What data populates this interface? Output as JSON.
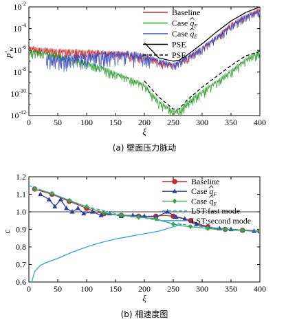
{
  "chart_data": [
    {
      "type": "line",
      "panel_caption": "(a) 壁面压力脉动",
      "xlabel": "ξ",
      "ylabel": "p'w",
      "xlim": [
        0,
        400
      ],
      "ylim_log10": [
        -12,
        -2
      ],
      "yscale": "log",
      "x_ticks": [
        "0",
        "50",
        "100",
        "150",
        "200",
        "250",
        "300",
        "350",
        "400"
      ],
      "y_ticks": [
        {
          "base": "10",
          "exp": "-2"
        },
        {
          "base": "10",
          "exp": "-4"
        },
        {
          "base": "10",
          "exp": "-6"
        },
        {
          "base": "10",
          "exp": "-8"
        },
        {
          "base": "10",
          "exp": "-10"
        },
        {
          "base": "10",
          "exp": "-12"
        }
      ],
      "legend": [
        {
          "label": "Baseline",
          "hat": "",
          "sub": "",
          "color": "#d62728",
          "style": "solid"
        },
        {
          "label": "Case ",
          "hat": "q",
          "sub": "F",
          "color": "#2ca02c",
          "style": "solid"
        },
        {
          "label": "Case ",
          "hat": "q",
          "sub": "E",
          "color": "#3a4ec2",
          "style": "solid"
        },
        {
          "label": "PSE",
          "hat": "",
          "sub": "",
          "color": "#000000",
          "style": "solid"
        },
        {
          "label": "PSE",
          "hat": "",
          "sub": "",
          "color": "#000000",
          "style": "dashed"
        }
      ],
      "series": [
        {
          "x": [
            0,
            25,
            50,
            75,
            100,
            125,
            150,
            175,
            200,
            225,
            250,
            275,
            300,
            325,
            350,
            375,
            400
          ],
          "y": [
            2e-06,
            1.5e-06,
            1.2e-06,
            1e-06,
            9e-07,
            8e-07,
            7e-07,
            6e-07,
            4e-07,
            1e-07,
            5e-08,
            3e-07,
            2e-06,
            2e-05,
            0.0003,
            0.0015,
            0.008
          ],
          "color": "#d62728"
        },
        {
          "x": [
            0,
            25,
            50,
            75,
            100,
            125,
            150,
            175,
            200,
            225,
            250,
            260,
            275,
            300,
            325,
            350,
            375,
            400
          ],
          "y": [
            1e-06,
            8e-07,
            4e-07,
            2e-07,
            8e-08,
            3e-08,
            1e-08,
            3e-09,
            8e-10,
            2e-11,
            3e-12,
            3e-12,
            2e-11,
            2e-10,
            1.5e-09,
            1.5e-08,
            1.5e-07,
            1e-06
          ],
          "color": "#2ca02c"
        },
        {
          "x": [
            30,
            50,
            75,
            100,
            125,
            150,
            175,
            200,
            225,
            250,
            275,
            300,
            325,
            350,
            375,
            400
          ],
          "y": [
            3e-07,
            2e-07,
            3e-07,
            4e-07,
            5e-07,
            6e-07,
            6e-07,
            4e-07,
            1.5e-07,
            6e-08,
            3e-07,
            2e-06,
            2e-05,
            0.0002,
            0.002,
            0.004
          ],
          "color": "#3a4ec2"
        },
        {
          "x": [
            200,
            225,
            250,
            260,
            275,
            300,
            325,
            350,
            375,
            400
          ],
          "y": [
            5e-06,
            2e-07,
            1e-07,
            1.2e-07,
            4e-07,
            4e-06,
            5e-05,
            0.0005,
            0.003,
            0.01
          ],
          "color": "#000000",
          "style": "solid"
        },
        {
          "x": [
            200,
            225,
            250,
            260,
            275,
            300,
            325,
            350,
            375,
            400
          ],
          "y": [
            1.5e-09,
            5e-11,
            4e-12,
            4e-12,
            3e-11,
            4e-10,
            4e-09,
            4e-08,
            3e-07,
            8e-07
          ],
          "color": "#000000",
          "style": "dashed"
        }
      ]
    },
    {
      "type": "line",
      "panel_caption": "(b) 相速度图",
      "xlabel": "ξ",
      "ylabel": "c",
      "xlim": [
        0,
        400
      ],
      "ylim": [
        0.6,
        1.2
      ],
      "x_ticks": [
        "0",
        "50",
        "100",
        "150",
        "200",
        "250",
        "300",
        "350",
        "400"
      ],
      "y_ticks": [
        "0.6",
        "0.7",
        "0.8",
        "0.9",
        "1.0",
        "1.1",
        "1.2"
      ],
      "reference_line_y": 1.0,
      "legend": [
        {
          "label": "Baseline",
          "hat": "",
          "sub": "",
          "color": "#c0282c",
          "marker": "circle",
          "style": "solid"
        },
        {
          "label": "Case ",
          "hat": "q",
          "sub": "F",
          "color": "#2c3fa8",
          "marker": "triangle",
          "style": "solid"
        },
        {
          "label": "Case ",
          "hat": "q",
          "sub": "E",
          "color": "#3aa83a",
          "marker": "diamond",
          "style": "solid"
        },
        {
          "label": "LST:fast mode",
          "hat": "",
          "sub": "",
          "color": "#2aa6d6",
          "marker": "",
          "style": "dashed"
        },
        {
          "label": "LST:second mode",
          "hat": "",
          "sub": "",
          "color": "#2aa6d6",
          "marker": "",
          "style": "solid"
        }
      ],
      "series": [
        {
          "x": [
            10,
            25,
            40,
            55,
            70,
            85,
            100,
            115,
            130,
            145,
            160,
            175,
            190,
            205,
            220,
            235,
            250,
            265,
            280,
            295,
            310,
            325,
            340,
            355,
            370,
            385,
            400
          ],
          "y": [
            1.13,
            1.115,
            1.1,
            1.08,
            1.06,
            1.04,
            1.02,
            1.0,
            0.99,
            0.985,
            0.98,
            0.98,
            0.975,
            0.975,
            0.975,
            0.98,
            0.975,
            0.965,
            0.95,
            0.93,
            0.915,
            0.905,
            0.9,
            0.9,
            0.895,
            0.895,
            0.89
          ],
          "color": "#c0282c",
          "marker": "circle"
        },
        {
          "x": [
            20,
            35,
            45,
            55,
            65,
            75,
            85,
            95,
            110,
            125,
            140,
            160,
            180,
            200,
            220,
            240,
            255,
            270,
            290,
            310,
            330,
            350,
            370,
            390,
            400
          ],
          "y": [
            1.1,
            1.07,
            1.03,
            1.07,
            1.02,
            1.0,
            1.02,
            0.99,
            1.0,
            0.98,
            0.99,
            0.975,
            0.98,
            0.975,
            0.97,
            1.0,
            0.97,
            0.96,
            0.93,
            0.91,
            0.905,
            0.9,
            0.895,
            0.89,
            0.89
          ],
          "color": "#2c3fa8",
          "marker": "triangle"
        },
        {
          "x": [
            10,
            25,
            40,
            55,
            70,
            85,
            100,
            115,
            130,
            145,
            160,
            175,
            190,
            205,
            220,
            235,
            250,
            265,
            280,
            295,
            310,
            325,
            340,
            355,
            370,
            385,
            400
          ],
          "y": [
            1.13,
            1.12,
            1.105,
            1.085,
            1.065,
            1.045,
            1.03,
            1.01,
            0.995,
            0.985,
            0.98,
            0.975,
            0.97,
            0.965,
            0.96,
            0.945,
            0.93,
            0.92,
            0.915,
            0.91,
            0.905,
            0.9,
            0.9,
            0.895,
            0.895,
            0.89,
            0.89
          ],
          "color": "#3aa83a",
          "marker": "diamond"
        },
        {
          "x": [
            0,
            50,
            100,
            150,
            200,
            250,
            300,
            350,
            400
          ],
          "y": [
            1.15,
            1.09,
            1.03,
            0.99,
            0.965,
            0.935,
            0.915,
            0.9,
            0.89
          ],
          "color": "#2aa6d6",
          "style": "dashed"
        },
        {
          "x": [
            5,
            10,
            20,
            30,
            50,
            75,
            100,
            125,
            150,
            175,
            200,
            225,
            250,
            265
          ],
          "y": [
            0.6,
            0.66,
            0.695,
            0.71,
            0.735,
            0.77,
            0.8,
            0.825,
            0.845,
            0.86,
            0.875,
            0.89,
            0.915,
            0.93
          ],
          "color": "#2aa6d6",
          "style": "solid"
        }
      ]
    }
  ]
}
